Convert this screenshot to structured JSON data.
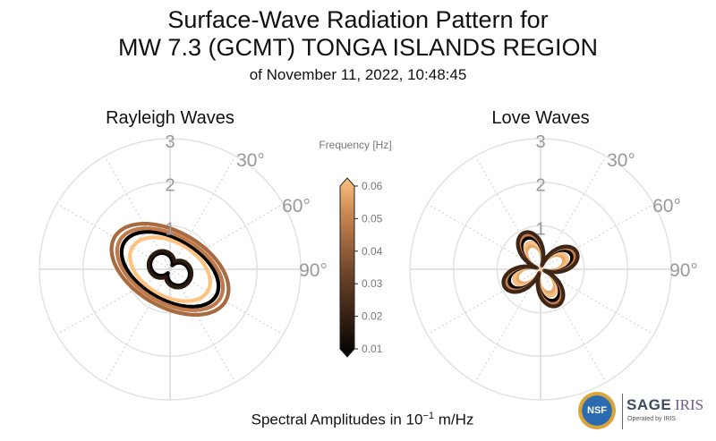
{
  "header": {
    "title_line1": "Surface-Wave Radiation Pattern for",
    "title_line2": "MW 7.3 (GCMT) TONGA ISLANDS REGION",
    "subtitle": "of November 11, 2022, 10:48:45"
  },
  "footer": {
    "text": "Spectral Amplitudes in 10",
    "exponent": "−1",
    "unit": " m/Hz"
  },
  "logos": {
    "nsf": "NSF",
    "sage": "SAGE",
    "iris": "IRIS",
    "operated": "Operated by IRIS"
  },
  "chart_data": {
    "type": "polar",
    "colormap": "copper",
    "colorbar": {
      "label": "Frequency [Hz]",
      "ticks": [
        "0.06",
        "0.05",
        "0.04",
        "0.03",
        "0.02",
        "0.01"
      ],
      "range": [
        0.01,
        0.06
      ]
    },
    "colors": {
      "low": "#000000",
      "mid": "#c07a4b",
      "high": "#ffc37f"
    },
    "panels": [
      {
        "title": "Rayleigh Waves",
        "r_ticks": [
          "1",
          "2",
          "3"
        ],
        "angle_ticks": [
          "30°",
          "60°",
          "90°"
        ],
        "r_max": 3.4,
        "series": [
          {
            "frequency": 0.01,
            "color": "#000000",
            "shape": "dipole",
            "a": 0.48,
            "b": 0.1,
            "orient": 120
          },
          {
            "frequency": 0.02,
            "color": "#2b1a10",
            "shape": "dipole",
            "a": 0.52,
            "b": 0.2,
            "orient": 120
          },
          {
            "frequency": 0.03,
            "color": "#ffc37f",
            "shape": "ellipse",
            "a": 1.0,
            "b": 0.62,
            "orient": 120
          },
          {
            "frequency": 0.04,
            "color": "#000000",
            "shape": "ellipse",
            "a": 1.22,
            "b": 0.7,
            "orient": 120
          },
          {
            "frequency": 0.045,
            "color": "#c07a4b",
            "shape": "ellipse",
            "a": 1.33,
            "b": 0.77,
            "orient": 120
          },
          {
            "frequency": 0.05,
            "color": "#a86a3f",
            "shape": "ellipse",
            "a": 1.47,
            "b": 0.86,
            "orient": 120
          }
        ]
      },
      {
        "title": "Love Waves",
        "r_ticks": [
          "1",
          "2",
          "3"
        ],
        "angle_ticks": [
          "30°",
          "60°",
          "90°"
        ],
        "r_max": 3.4,
        "series": [
          {
            "frequency": 0.01,
            "color": "#e8a866",
            "shape": "clover",
            "a": 0.58,
            "b": 0.06,
            "orient": 20
          },
          {
            "frequency": 0.015,
            "color": "#f3c08a",
            "shape": "clover",
            "a": 0.66,
            "b": 0.07,
            "orient": 20
          },
          {
            "frequency": 0.02,
            "color": "#000000",
            "shape": "clover",
            "a": 0.78,
            "b": 0.08,
            "orient": 20
          },
          {
            "frequency": 0.03,
            "color": "#c07a4b",
            "shape": "clover",
            "a": 0.86,
            "b": 0.09,
            "orient": 20
          },
          {
            "frequency": 0.04,
            "color": "#3d2616",
            "shape": "clover",
            "a": 0.92,
            "b": 0.1,
            "orient": 20
          }
        ]
      }
    ]
  }
}
